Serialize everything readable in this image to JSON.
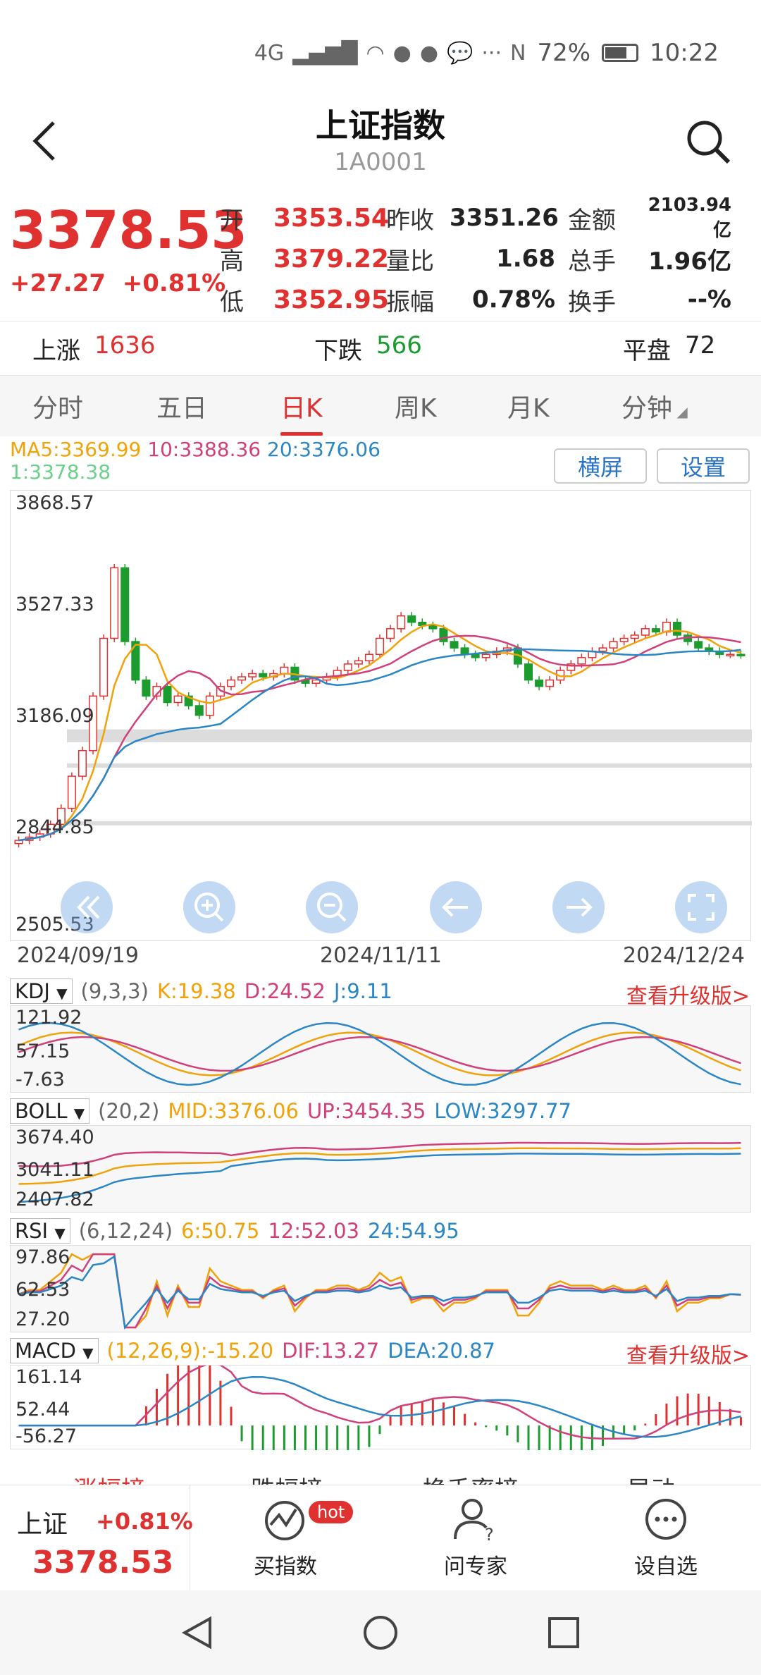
{
  "status": {
    "network": "4G",
    "battery": "72%",
    "time": "10:22"
  },
  "header": {
    "title": "上证指数",
    "code": "1A0001"
  },
  "quote": {
    "price": "3378.53",
    "change": "+27.27",
    "change_pct": "+0.81%",
    "rows": [
      {
        "l1": "开",
        "v1": "3353.54",
        "l2": "昨收",
        "v2": "3351.26",
        "l3": "金额",
        "v3": "2103.94亿"
      },
      {
        "l1": "高",
        "v1": "3379.22",
        "l2": "量比",
        "v2": "1.68",
        "l3": "总手",
        "v3": "1.96亿"
      },
      {
        "l1": "低",
        "v1": "3352.95",
        "l2": "振幅",
        "v2": "0.78%",
        "l3": "换手",
        "v3": "--%"
      }
    ]
  },
  "breadth": {
    "up_label": "上涨",
    "up_value": "1636",
    "down_label": "下跌",
    "down_value": "566",
    "flat_label": "平盘",
    "flat_value": "72"
  },
  "tabs": [
    "分时",
    "五日",
    "日K",
    "周K",
    "月K",
    "分钟"
  ],
  "active_tab": "日K",
  "ma_legend": {
    "ma5": "MA5:3369.99",
    "ma10": "10:3388.36",
    "ma20": "20:3376.06",
    "ma1": "1:3378.38"
  },
  "buttons": {
    "landscape": "横屏",
    "settings": "设置"
  },
  "chart_data": {
    "type": "candlestick",
    "y_ticks": [
      "3868.57",
      "3527.33",
      "3186.09",
      "2844.85",
      "2505.53"
    ],
    "ylim": [
      2505.53,
      3868.57
    ],
    "x_ticks": [
      "2024/09/19",
      "2024/11/11",
      "2024/12/24"
    ],
    "close_trend": [
      2800,
      2810,
      2820,
      2850,
      2900,
      3000,
      3080,
      3250,
      3430,
      3650,
      3420,
      3300,
      3250,
      3280,
      3230,
      3250,
      3220,
      3190,
      3250,
      3280,
      3300,
      3310,
      3320,
      3310,
      3320,
      3340,
      3300,
      3290,
      3300,
      3310,
      3330,
      3350,
      3360,
      3380,
      3430,
      3460,
      3500,
      3480,
      3470,
      3460,
      3420,
      3400,
      3380,
      3370,
      3380,
      3390,
      3400,
      3350,
      3300,
      3280,
      3300,
      3330,
      3350,
      3370,
      3390,
      3400,
      3420,
      3430,
      3440,
      3460,
      3450,
      3480,
      3440,
      3420,
      3400,
      3390,
      3380,
      3380,
      3378
    ]
  },
  "kdj": {
    "name": "KDJ",
    "params": "(9,3,3)",
    "k": "K:19.38",
    "d": "D:24.52",
    "j": "J:9.11",
    "upgrade": "查看升级版>",
    "ticks": [
      "121.92",
      "57.15",
      "-7.63"
    ]
  },
  "boll": {
    "name": "BOLL",
    "params": "(20,2)",
    "mid": "MID:3376.06",
    "up": "UP:3454.35",
    "low": "LOW:3297.77",
    "ticks": [
      "3674.40",
      "3041.11",
      "2407.82"
    ]
  },
  "rsi": {
    "name": "RSI",
    "params": "(6,12,24)",
    "r6": "6:50.75",
    "r12": "12:52.03",
    "r24": "24:54.95",
    "ticks": [
      "97.86",
      "62.53",
      "27.20"
    ]
  },
  "macd": {
    "name": "MACD",
    "params": "(12,26,9):-15.20",
    "dif": "DIF:13.27",
    "dea": "DEA:20.87",
    "upgrade": "查看升级版>",
    "ticks": [
      "161.14",
      "52.44",
      "-56.27"
    ]
  },
  "bottom_tabs_peek": [
    "涨幅榜",
    "跌幅榜",
    "换手率榜",
    "异动"
  ],
  "bottom_bar": {
    "index_name": "上证",
    "index_change": "+0.81%",
    "index_price": "3378.53",
    "buy_label": "买指数",
    "hot": "hot",
    "ask_label": "问专家",
    "watch_label": "设自选"
  },
  "colors": {
    "up": "#e03131",
    "down": "#1c9b2f",
    "ma5": "#f0a20a",
    "ma10": "#d0407a",
    "ma20": "#2a86c4",
    "ma1": "#6ad08a"
  }
}
